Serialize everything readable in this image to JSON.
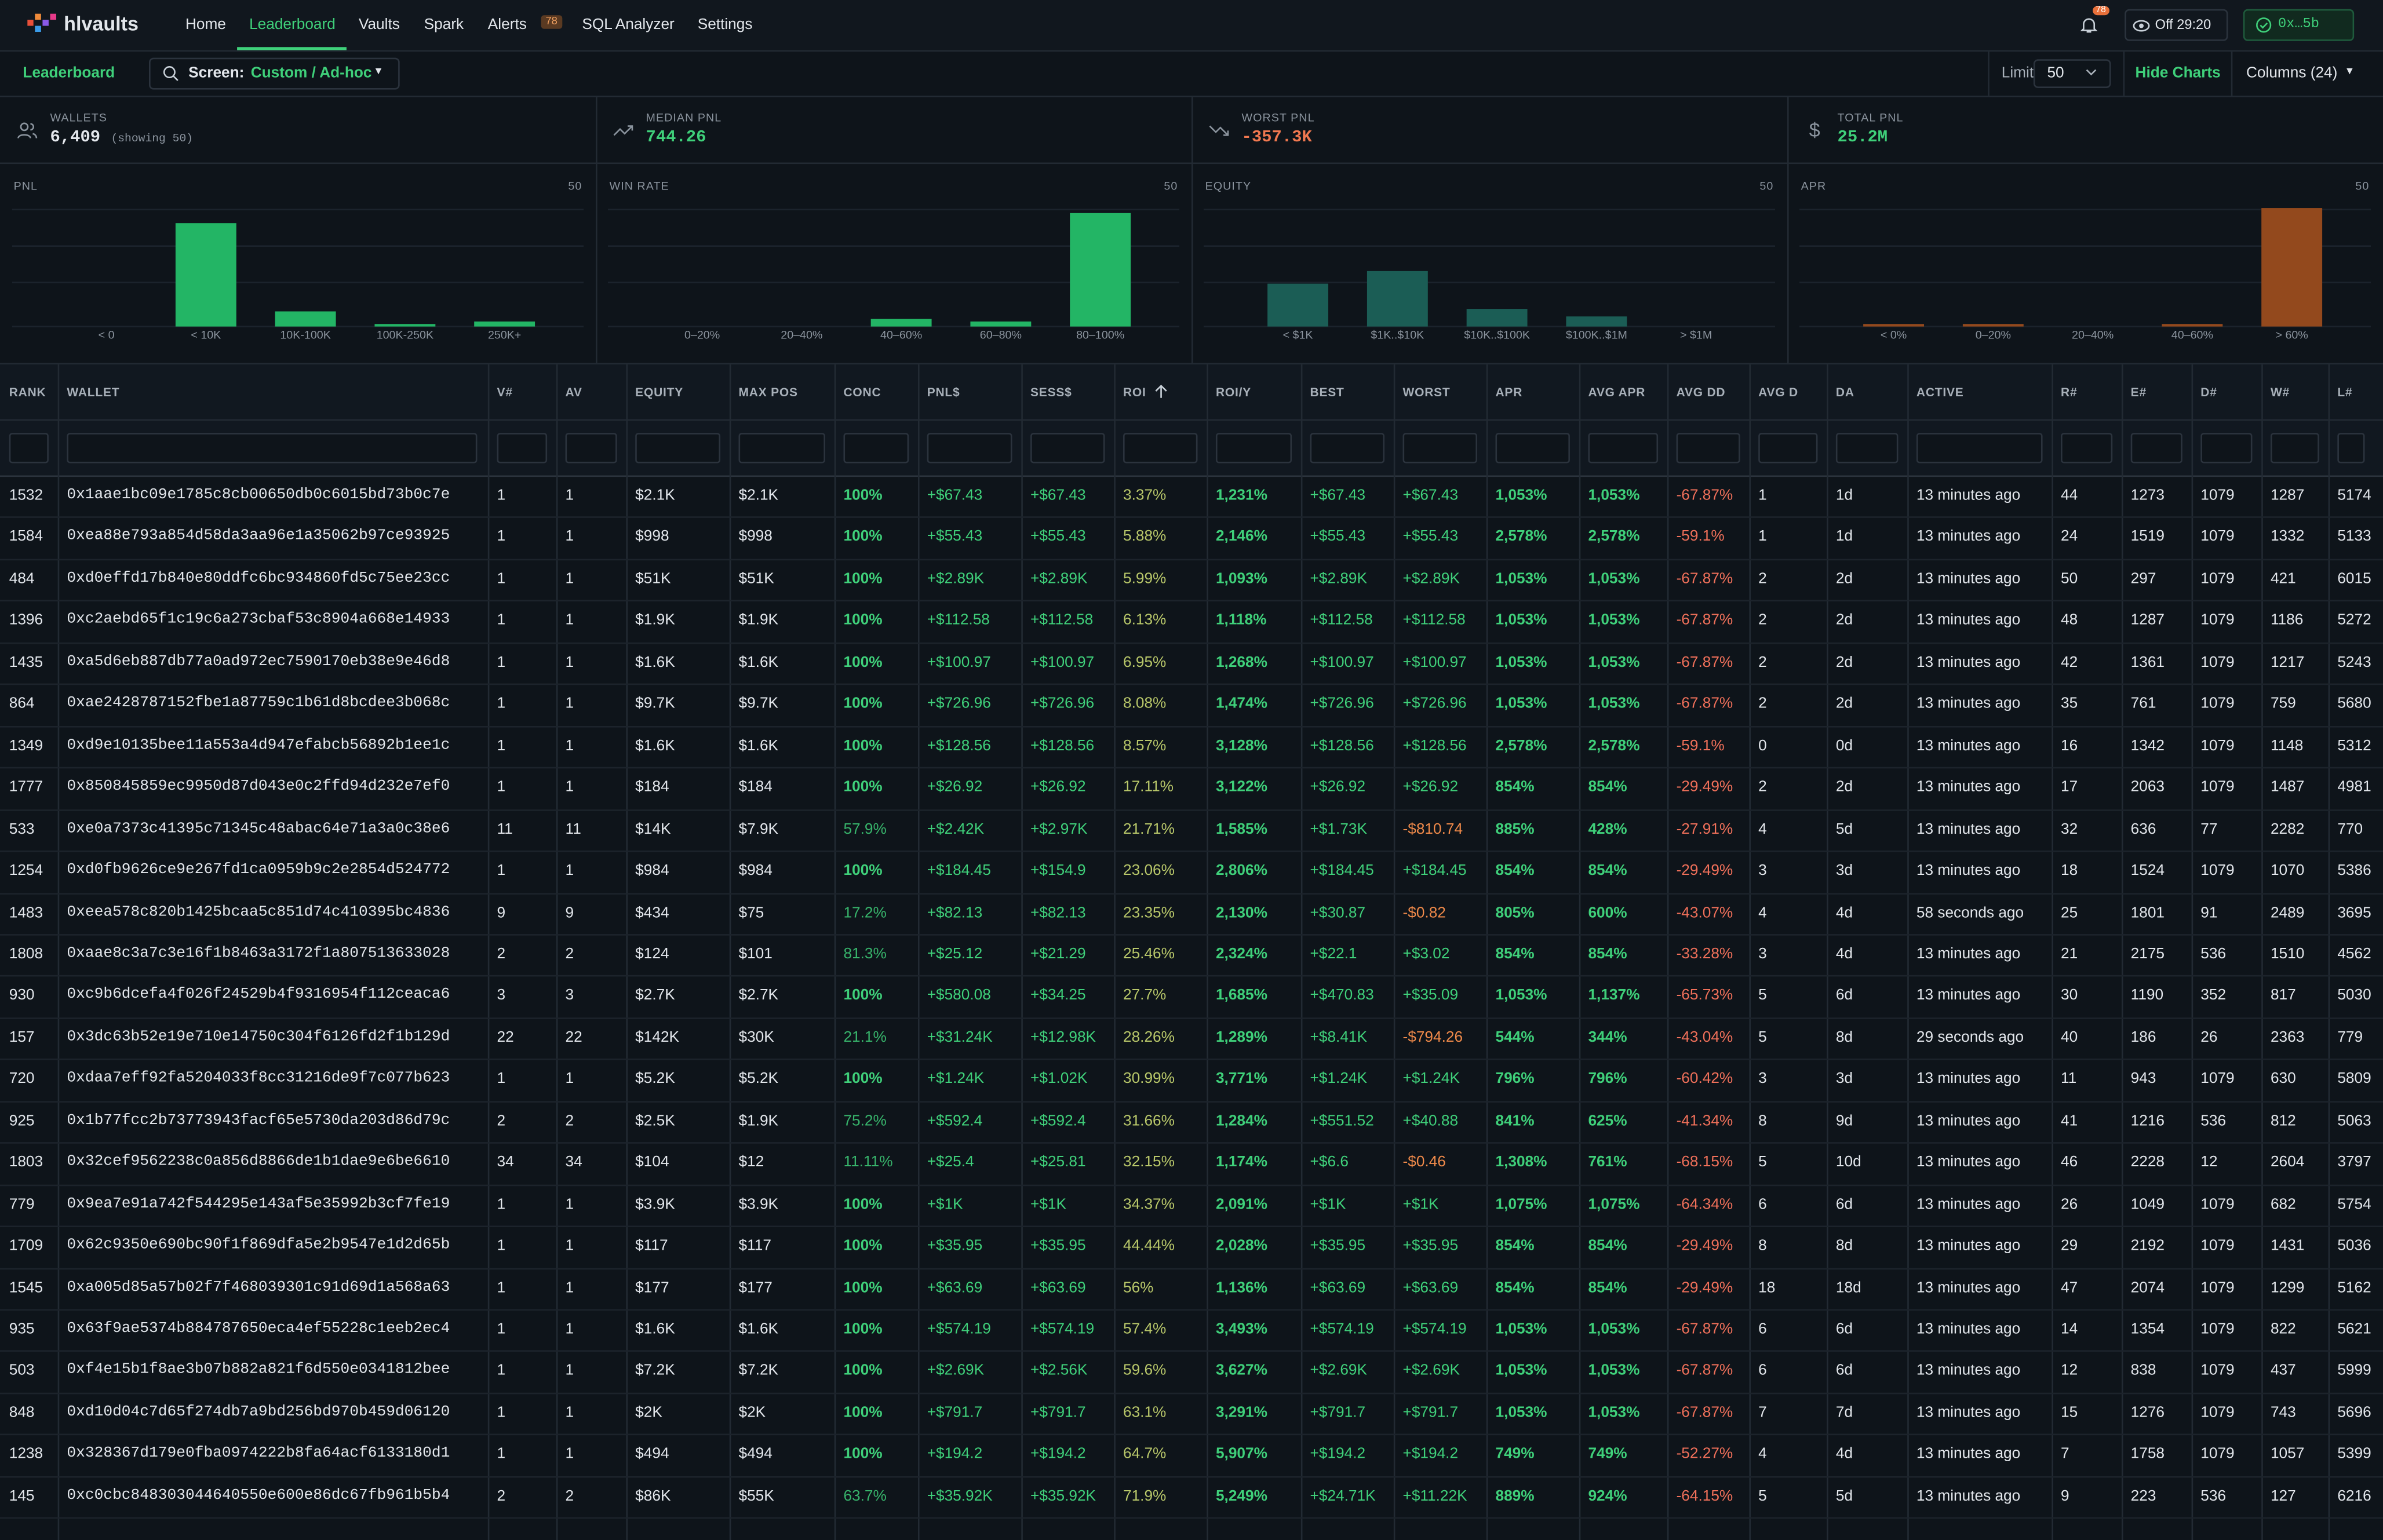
{
  "nav": {
    "brand": "hlvaults",
    "items": [
      "Home",
      "Leaderboard",
      "Vaults",
      "Spark",
      "Alerts",
      "SQL Analyzer",
      "Settings"
    ],
    "alerts_badge": "78",
    "notif_badge": "78",
    "timer": "Off 29:20",
    "account": "0x…5b"
  },
  "toolbar": {
    "title": "Leaderboard",
    "screen_label": "Screen:",
    "screen_value": "Custom / Ad-hoc",
    "limit_label": "Limit",
    "limit_value": "50",
    "hide_charts": "Hide Charts",
    "columns": "Columns (24)"
  },
  "stats": [
    {
      "label": "WALLETS",
      "value": "6,409",
      "note": "(showing 50)"
    },
    {
      "label": "MEDIAN PNL",
      "value": "744.26"
    },
    {
      "label": "WORST PNL",
      "value": "-357.3K"
    },
    {
      "label": "TOTAL PNL",
      "value": "25.2M"
    }
  ],
  "charts": [
    {
      "title": "PNL",
      "max": 50,
      "color": "#23b565",
      "categories": [
        "< 0",
        "< 10K",
        "10K-100K",
        "100K-250K",
        "250K+"
      ],
      "values": [
        0,
        41,
        6,
        1,
        2
      ]
    },
    {
      "title": "WIN RATE",
      "max": 50,
      "color": "#23b565",
      "categories": [
        "0–20%",
        "20–40%",
        "40–60%",
        "60–80%",
        "80–100%"
      ],
      "values": [
        0,
        0,
        3,
        2,
        45
      ]
    },
    {
      "title": "EQUITY",
      "max": 50,
      "color": "#1b5d55",
      "categories": [
        "< $1K",
        "$1K..$10K",
        "$10K..$100K",
        "$100K..$1M",
        "> $1M"
      ],
      "values": [
        17,
        22,
        7,
        4,
        0
      ]
    },
    {
      "title": "APR",
      "max": 50,
      "color": "#93491d",
      "categories": [
        "< 0%",
        "0–20%",
        "20–40%",
        "40–60%",
        "> 60%"
      ],
      "values": [
        1,
        1,
        0,
        1,
        47
      ]
    }
  ],
  "table": {
    "columns": [
      "RANK",
      "WALLET",
      "V#",
      "AV",
      "EQUITY",
      "MAX POS",
      "CONC",
      "PNL$",
      "SESS$",
      "ROI",
      "ROI/Y",
      "BEST",
      "WORST",
      "APR",
      "AVG APR",
      "AVG DD",
      "AVG D",
      "DA",
      "ACTIVE",
      "R#",
      "E#",
      "D#",
      "W#",
      "L#"
    ],
    "rows": [
      [
        "1532",
        "0x1aae1bc09e1785c8cb00650db0c6015bd73b0c7e",
        "1",
        "1",
        "$2.1K",
        "$2.1K",
        "100%",
        "+$67.43",
        "+$67.43",
        "3.37%",
        "1,231%",
        "+$67.43",
        "+$67.43",
        "1,053%",
        "1,053%",
        "-67.87%",
        "1",
        "1d",
        "13 minutes ago",
        "44",
        "1273",
        "1079",
        "1287",
        "5174"
      ],
      [
        "1584",
        "0xea88e793a854d58da3aa96e1a35062b97ce93925",
        "1",
        "1",
        "$998",
        "$998",
        "100%",
        "+$55.43",
        "+$55.43",
        "5.88%",
        "2,146%",
        "+$55.43",
        "+$55.43",
        "2,578%",
        "2,578%",
        "-59.1%",
        "1",
        "1d",
        "13 minutes ago",
        "24",
        "1519",
        "1079",
        "1332",
        "5133"
      ],
      [
        "484",
        "0xd0effd17b840e80ddfc6bc934860fd5c75ee23cc",
        "1",
        "1",
        "$51K",
        "$51K",
        "100%",
        "+$2.89K",
        "+$2.89K",
        "5.99%",
        "1,093%",
        "+$2.89K",
        "+$2.89K",
        "1,053%",
        "1,053%",
        "-67.87%",
        "2",
        "2d",
        "13 minutes ago",
        "50",
        "297",
        "1079",
        "421",
        "6015"
      ],
      [
        "1396",
        "0xc2aebd65f1c19c6a273cbaf53c8904a668e14933",
        "1",
        "1",
        "$1.9K",
        "$1.9K",
        "100%",
        "+$112.58",
        "+$112.58",
        "6.13%",
        "1,118%",
        "+$112.58",
        "+$112.58",
        "1,053%",
        "1,053%",
        "-67.87%",
        "2",
        "2d",
        "13 minutes ago",
        "48",
        "1287",
        "1079",
        "1186",
        "5272"
      ],
      [
        "1435",
        "0xa5d6eb887db77a0ad972ec7590170eb38e9e46d8",
        "1",
        "1",
        "$1.6K",
        "$1.6K",
        "100%",
        "+$100.97",
        "+$100.97",
        "6.95%",
        "1,268%",
        "+$100.97",
        "+$100.97",
        "1,053%",
        "1,053%",
        "-67.87%",
        "2",
        "2d",
        "13 minutes ago",
        "42",
        "1361",
        "1079",
        "1217",
        "5243"
      ],
      [
        "864",
        "0xae2428787152fbe1a87759c1b61d8bcdee3b068c",
        "1",
        "1",
        "$9.7K",
        "$9.7K",
        "100%",
        "+$726.96",
        "+$726.96",
        "8.08%",
        "1,474%",
        "+$726.96",
        "+$726.96",
        "1,053%",
        "1,053%",
        "-67.87%",
        "2",
        "2d",
        "13 minutes ago",
        "35",
        "761",
        "1079",
        "759",
        "5680"
      ],
      [
        "1349",
        "0xd9e10135bee11a553a4d947efabcb56892b1ee1c",
        "1",
        "1",
        "$1.6K",
        "$1.6K",
        "100%",
        "+$128.56",
        "+$128.56",
        "8.57%",
        "3,128%",
        "+$128.56",
        "+$128.56",
        "2,578%",
        "2,578%",
        "-59.1%",
        "0",
        "0d",
        "13 minutes ago",
        "16",
        "1342",
        "1079",
        "1148",
        "5312"
      ],
      [
        "1777",
        "0x850845859ec9950d87d043e0c2ffd94d232e7ef0",
        "1",
        "1",
        "$184",
        "$184",
        "100%",
        "+$26.92",
        "+$26.92",
        "17.11%",
        "3,122%",
        "+$26.92",
        "+$26.92",
        "854%",
        "854%",
        "-29.49%",
        "2",
        "2d",
        "13 minutes ago",
        "17",
        "2063",
        "1079",
        "1487",
        "4981"
      ],
      [
        "533",
        "0xe0a7373c41395c71345c48abac64e71a3a0c38e6",
        "11",
        "11",
        "$14K",
        "$7.9K",
        "57.9%",
        "+$2.42K",
        "+$2.97K",
        "21.71%",
        "1,585%",
        "+$1.73K",
        "-$810.74",
        "885%",
        "428%",
        "-27.91%",
        "4",
        "5d",
        "13 minutes ago",
        "32",
        "636",
        "77",
        "2282",
        "770"
      ],
      [
        "1254",
        "0xd0fb9626ce9e267fd1ca0959b9c2e2854d524772",
        "1",
        "1",
        "$984",
        "$984",
        "100%",
        "+$184.45",
        "+$154.9",
        "23.06%",
        "2,806%",
        "+$184.45",
        "+$184.45",
        "854%",
        "854%",
        "-29.49%",
        "3",
        "3d",
        "13 minutes ago",
        "18",
        "1524",
        "1079",
        "1070",
        "5386"
      ],
      [
        "1483",
        "0xeea578c820b1425bcaa5c851d74c410395bc4836",
        "9",
        "9",
        "$434",
        "$75",
        "17.2%",
        "+$82.13",
        "+$82.13",
        "23.35%",
        "2,130%",
        "+$30.87",
        "-$0.82",
        "805%",
        "600%",
        "-43.07%",
        "4",
        "4d",
        "58 seconds ago",
        "25",
        "1801",
        "91",
        "2489",
        "3695"
      ],
      [
        "1808",
        "0xaae8c3a7c3e16f1b8463a3172f1a807513633028",
        "2",
        "2",
        "$124",
        "$101",
        "81.3%",
        "+$25.12",
        "+$21.29",
        "25.46%",
        "2,324%",
        "+$22.1",
        "+$3.02",
        "854%",
        "854%",
        "-33.28%",
        "3",
        "4d",
        "13 minutes ago",
        "21",
        "2175",
        "536",
        "1510",
        "4562"
      ],
      [
        "930",
        "0xc9b6dcefa4f026f24529b4f9316954f112ceaca6",
        "3",
        "3",
        "$2.7K",
        "$2.7K",
        "100%",
        "+$580.08",
        "+$34.25",
        "27.7%",
        "1,685%",
        "+$470.83",
        "+$35.09",
        "1,053%",
        "1,137%",
        "-65.73%",
        "5",
        "6d",
        "13 minutes ago",
        "30",
        "1190",
        "352",
        "817",
        "5030"
      ],
      [
        "157",
        "0x3dc63b52e19e710e14750c304f6126fd2f1b129d",
        "22",
        "22",
        "$142K",
        "$30K",
        "21.1%",
        "+$31.24K",
        "+$12.98K",
        "28.26%",
        "1,289%",
        "+$8.41K",
        "-$794.26",
        "544%",
        "344%",
        "-43.04%",
        "5",
        "8d",
        "29 seconds ago",
        "40",
        "186",
        "26",
        "2363",
        "779"
      ],
      [
        "720",
        "0xdaa7eff92fa5204033f8cc31216de9f7c077b623",
        "1",
        "1",
        "$5.2K",
        "$5.2K",
        "100%",
        "+$1.24K",
        "+$1.02K",
        "30.99%",
        "3,771%",
        "+$1.24K",
        "+$1.24K",
        "796%",
        "796%",
        "-60.42%",
        "3",
        "3d",
        "13 minutes ago",
        "11",
        "943",
        "1079",
        "630",
        "5809"
      ],
      [
        "925",
        "0x1b77fcc2b73773943facf65e5730da203d86d79c",
        "2",
        "2",
        "$2.5K",
        "$1.9K",
        "75.2%",
        "+$592.4",
        "+$592.4",
        "31.66%",
        "1,284%",
        "+$551.52",
        "+$40.88",
        "841%",
        "625%",
        "-41.34%",
        "8",
        "9d",
        "13 minutes ago",
        "41",
        "1216",
        "536",
        "812",
        "5063"
      ],
      [
        "1803",
        "0x32cef9562238c0a856d8866de1b1dae9e6be6610",
        "34",
        "34",
        "$104",
        "$12",
        "11.11%",
        "+$25.4",
        "+$25.81",
        "32.15%",
        "1,174%",
        "+$6.6",
        "-$0.46",
        "1,308%",
        "761%",
        "-68.15%",
        "5",
        "10d",
        "13 minutes ago",
        "46",
        "2228",
        "12",
        "2604",
        "3797"
      ],
      [
        "779",
        "0x9ea7e91a742f544295e143af5e35992b3cf7fe19",
        "1",
        "1",
        "$3.9K",
        "$3.9K",
        "100%",
        "+$1K",
        "+$1K",
        "34.37%",
        "2,091%",
        "+$1K",
        "+$1K",
        "1,075%",
        "1,075%",
        "-64.34%",
        "6",
        "6d",
        "13 minutes ago",
        "26",
        "1049",
        "1079",
        "682",
        "5754"
      ],
      [
        "1709",
        "0x62c9350e690bc90f1f869dfa5e2b9547e1d2d65b",
        "1",
        "1",
        "$117",
        "$117",
        "100%",
        "+$35.95",
        "+$35.95",
        "44.44%",
        "2,028%",
        "+$35.95",
        "+$35.95",
        "854%",
        "854%",
        "-29.49%",
        "8",
        "8d",
        "13 minutes ago",
        "29",
        "2192",
        "1079",
        "1431",
        "5036"
      ],
      [
        "1545",
        "0xa005d85a57b02f7f468039301c91d69d1a568a63",
        "1",
        "1",
        "$177",
        "$177",
        "100%",
        "+$63.69",
        "+$63.69",
        "56%",
        "1,136%",
        "+$63.69",
        "+$63.69",
        "854%",
        "854%",
        "-29.49%",
        "18",
        "18d",
        "13 minutes ago",
        "47",
        "2074",
        "1079",
        "1299",
        "5162"
      ],
      [
        "935",
        "0x63f9ae5374b884787650eca4ef55228c1eeb2ec4",
        "1",
        "1",
        "$1.6K",
        "$1.6K",
        "100%",
        "+$574.19",
        "+$574.19",
        "57.4%",
        "3,493%",
        "+$574.19",
        "+$574.19",
        "1,053%",
        "1,053%",
        "-67.87%",
        "6",
        "6d",
        "13 minutes ago",
        "14",
        "1354",
        "1079",
        "822",
        "5621"
      ],
      [
        "503",
        "0xf4e15b1f8ae3b07b882a821f6d550e0341812bee",
        "1",
        "1",
        "$7.2K",
        "$7.2K",
        "100%",
        "+$2.69K",
        "+$2.56K",
        "59.6%",
        "3,627%",
        "+$2.69K",
        "+$2.69K",
        "1,053%",
        "1,053%",
        "-67.87%",
        "6",
        "6d",
        "13 minutes ago",
        "12",
        "838",
        "1079",
        "437",
        "5999"
      ],
      [
        "848",
        "0xd10d04c7d65f274db7a9bd256bd970b459d06120",
        "1",
        "1",
        "$2K",
        "$2K",
        "100%",
        "+$791.7",
        "+$791.7",
        "63.1%",
        "3,291%",
        "+$791.7",
        "+$791.7",
        "1,053%",
        "1,053%",
        "-67.87%",
        "7",
        "7d",
        "13 minutes ago",
        "15",
        "1276",
        "1079",
        "743",
        "5696"
      ],
      [
        "1238",
        "0x328367d179e0fba0974222b8fa64acf6133180d1",
        "1",
        "1",
        "$494",
        "$494",
        "100%",
        "+$194.2",
        "+$194.2",
        "64.7%",
        "5,907%",
        "+$194.2",
        "+$194.2",
        "749%",
        "749%",
        "-52.27%",
        "4",
        "4d",
        "13 minutes ago",
        "7",
        "1758",
        "1079",
        "1057",
        "5399"
      ],
      [
        "145",
        "0xc0cbc848303044640550e600e86dc67fb961b5b4",
        "2",
        "2",
        "$86K",
        "$55K",
        "63.7%",
        "+$35.92K",
        "+$35.92K",
        "71.9%",
        "5,249%",
        "+$24.71K",
        "+$11.22K",
        "889%",
        "924%",
        "-64.15%",
        "5",
        "5d",
        "13 minutes ago",
        "9",
        "223",
        "536",
        "127",
        "6216"
      ]
    ]
  }
}
